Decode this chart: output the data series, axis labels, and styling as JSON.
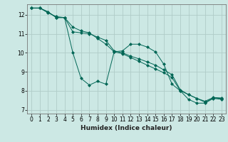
{
  "xlabel": "Humidex (Indice chaleur)",
  "background_color": "#cce8e4",
  "grid_color": "#b0ccc8",
  "line_color": "#006655",
  "xlim": [
    -0.5,
    23.5
  ],
  "ylim": [
    6.8,
    12.55
  ],
  "yticks": [
    7,
    8,
    9,
    10,
    11,
    12
  ],
  "xticks": [
    0,
    1,
    2,
    3,
    4,
    5,
    6,
    7,
    8,
    9,
    10,
    11,
    12,
    13,
    14,
    15,
    16,
    17,
    18,
    19,
    20,
    21,
    22,
    23
  ],
  "series": [
    [
      12.35,
      12.35,
      12.1,
      11.9,
      11.85,
      10.0,
      8.65,
      8.3,
      8.5,
      8.35,
      10.05,
      10.1,
      10.45,
      10.45,
      10.3,
      10.05,
      9.4,
      8.35,
      8.0,
      7.55,
      7.35,
      7.35,
      7.6,
      7.55
    ],
    [
      12.35,
      12.35,
      12.15,
      11.85,
      11.85,
      11.35,
      11.15,
      11.05,
      10.75,
      10.45,
      10.05,
      9.95,
      9.75,
      9.55,
      9.35,
      9.15,
      8.95,
      8.7,
      8.0,
      7.8,
      7.6,
      7.4,
      7.62,
      7.6
    ],
    [
      12.35,
      12.35,
      12.15,
      11.85,
      11.85,
      11.1,
      11.05,
      11.0,
      10.82,
      10.65,
      10.1,
      10.0,
      9.82,
      9.68,
      9.52,
      9.35,
      9.1,
      8.85,
      8.05,
      7.8,
      7.6,
      7.45,
      7.65,
      7.62
    ]
  ]
}
